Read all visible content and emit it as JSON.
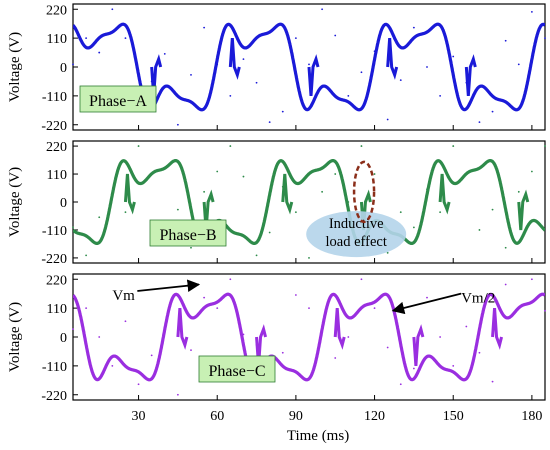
{
  "figure": {
    "xlabel": "Time (ms)",
    "x_ticks": [
      "30",
      "60",
      "90",
      "120",
      "150",
      "180"
    ]
  },
  "chart_data": [
    {
      "type": "line",
      "title": "",
      "label": "Phase−A",
      "xlabel": "",
      "ylabel": "Voltage (V)",
      "xlim": [
        5,
        185
      ],
      "ylim": [
        -240,
        240
      ],
      "y_ticks": [
        "220",
        "110",
        "0",
        "-110",
        "-220"
      ],
      "color": "#1a1ad8",
      "label_bg": "#c8f0b4",
      "waveform": {
        "period_ms": 60,
        "phase_offset_deg": 0,
        "amplitude": 220,
        "shape": "Vm + Vm/2 fundamental plus harmonic, switching spikes"
      },
      "series": [
        {
          "name": "",
          "x": [
            5,
            10,
            15,
            20,
            25,
            30,
            35,
            40,
            45,
            50,
            55,
            60,
            65,
            70,
            75,
            80,
            85,
            90,
            95,
            100,
            105,
            110,
            115,
            120,
            125,
            130,
            135,
            140,
            145,
            150,
            155,
            160,
            165,
            170,
            175,
            180,
            185
          ],
          "y": [
            10,
            110,
            55,
            220,
            110,
            -110,
            -55,
            50,
            -220,
            -30,
            150,
            10,
            -110,
            30,
            -60,
            -210,
            -170,
            110,
            10,
            220,
            120,
            -110,
            -20,
            60,
            -200,
            -50,
            150,
            0,
            -110,
            40,
            -60,
            -210,
            -170,
            100,
            10,
            210,
            110
          ]
        }
      ],
      "annotations": []
    },
    {
      "type": "line",
      "title": "",
      "label": "Phase−B",
      "xlabel": "",
      "ylabel": "Voltage (V)",
      "xlim": [
        5,
        185
      ],
      "ylim": [
        -240,
        240
      ],
      "y_ticks": [
        "220",
        "110",
        "0",
        "-110",
        "-220"
      ],
      "color": "#2e8b4a",
      "label_bg": "#c8f0b4",
      "waveform": {
        "period_ms": 60,
        "phase_offset_deg": 120,
        "amplitude": 220,
        "shape": "Vm + Vm/2 fundamental plus harmonic, switching spikes"
      },
      "series": [
        {
          "name": "",
          "x": [
            5,
            10,
            15,
            20,
            25,
            30,
            35,
            40,
            45,
            50,
            55,
            60,
            65,
            70,
            75,
            80,
            85,
            90,
            95,
            100,
            105,
            110,
            115,
            120,
            125,
            130,
            135,
            140,
            145,
            150,
            155,
            160,
            165,
            170,
            175,
            180,
            185
          ],
          "y": [
            -100,
            -210,
            -60,
            40,
            -40,
            220,
            110,
            -110,
            -30,
            -180,
            40,
            120,
            220,
            100,
            -210,
            -120,
            60,
            -40,
            -220,
            40,
            110,
            0,
            220,
            110,
            -200,
            -40,
            -100,
            50,
            -40,
            220,
            110,
            -110,
            -30,
            -180,
            40,
            120,
            220
          ]
        }
      ],
      "annotations": [
        {
          "type": "callout",
          "text": [
            "Inductive",
            "load effect"
          ],
          "x": 113,
          "y": -150,
          "bg": "#b4d4ea"
        },
        {
          "type": "ellipse",
          "x": 116,
          "y": 40,
          "color": "#8b2e1a"
        }
      ]
    },
    {
      "type": "line",
      "title": "",
      "label": "Phase−C",
      "xlabel": "",
      "ylabel": "Voltage (V)",
      "xlim": [
        5,
        185
      ],
      "ylim": [
        -240,
        240
      ],
      "y_ticks": [
        "220",
        "110",
        "0",
        "-110",
        "-220"
      ],
      "color": "#9a2ee0",
      "label_bg": "#c8f0b4",
      "waveform": {
        "period_ms": 60,
        "phase_offset_deg": 240,
        "amplitude": 220,
        "shape": "Vm + Vm/2 fundamental plus harmonic, switching spikes"
      },
      "series": [
        {
          "name": "",
          "x": [
            5,
            10,
            15,
            20,
            25,
            30,
            35,
            40,
            45,
            50,
            55,
            60,
            65,
            70,
            75,
            80,
            85,
            90,
            95,
            100,
            105,
            110,
            115,
            120,
            125,
            130,
            135,
            140,
            145,
            150,
            155,
            160,
            165,
            170,
            175,
            180,
            185
          ],
          "y": [
            30,
            110,
            0,
            -110,
            60,
            -180,
            -70,
            40,
            -220,
            -50,
            150,
            110,
            220,
            10,
            -30,
            -110,
            -60,
            160,
            110,
            30,
            -80,
            0,
            220,
            110,
            -40,
            -180,
            -120,
            150,
            0,
            -110,
            40,
            -60,
            -170,
            200,
            110,
            220,
            100
          ]
        }
      ],
      "annotations": [
        {
          "type": "arrow-label",
          "text": "Vm",
          "x": 53,
          "y": 200,
          "text_x": 20,
          "text_y": 160
        },
        {
          "type": "arrow-label",
          "text": "Vm/2",
          "x": 127,
          "y": 100,
          "text_x": 153,
          "text_y": 150
        }
      ]
    }
  ]
}
